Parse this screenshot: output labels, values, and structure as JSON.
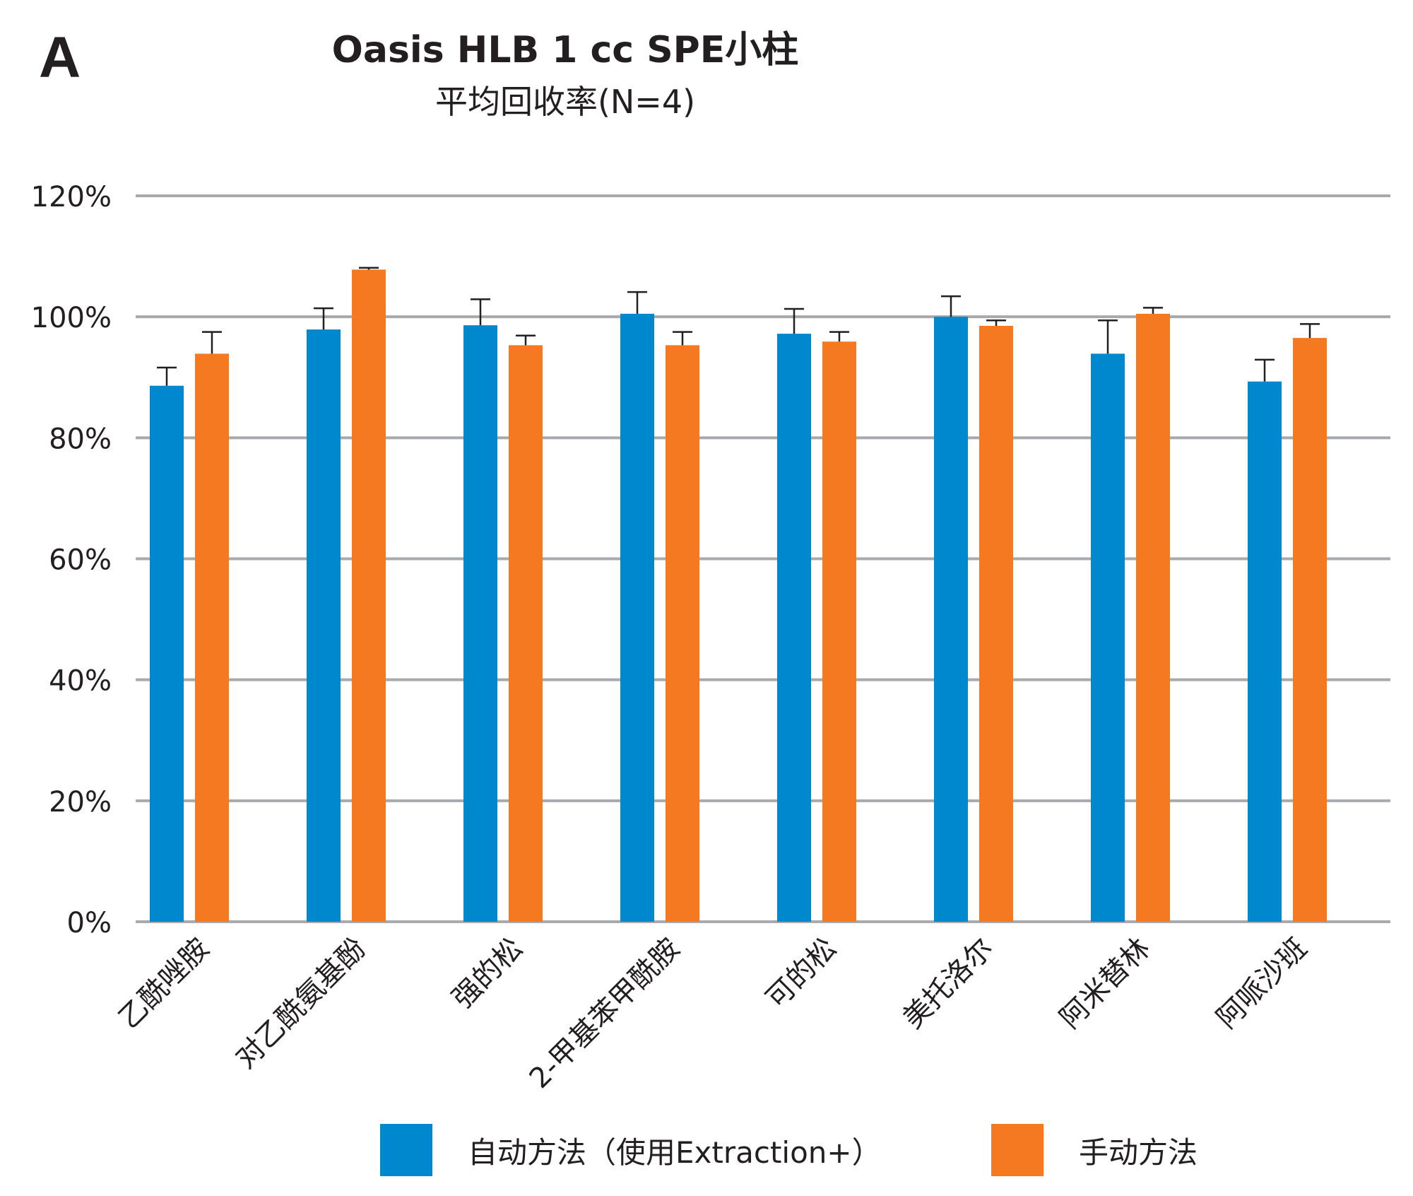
{
  "panel_label": "A",
  "chart_data": {
    "type": "bar",
    "title": "Oasis HLB 1 cc SPE小柱",
    "subtitle": "平均回收率(N=4)",
    "xlabel": "",
    "ylabel": "",
    "ylim": [
      0,
      120
    ],
    "yticks": [
      0,
      20,
      40,
      60,
      80,
      100,
      120
    ],
    "ytick_labels": [
      "0%",
      "20%",
      "40%",
      "60%",
      "80%",
      "100%",
      "120%"
    ],
    "grid": true,
    "legend_position": "bottom",
    "categories": [
      "乙酰唑胺",
      "对乙酰氨基酚",
      "强的松",
      "2-甲基苯甲酰胺",
      "可的松",
      "美托洛尔",
      "阿米替林",
      "阿哌沙班"
    ],
    "series": [
      {
        "name": "自动方法（使用Extraction+）",
        "color": "#0088cf",
        "values": [
          88.6,
          97.9,
          98.6,
          100.5,
          97.2,
          100.0,
          93.9,
          89.3
        ],
        "error": [
          3.0,
          3.5,
          4.3,
          3.6,
          4.1,
          3.4,
          5.5,
          3.6
        ]
      },
      {
        "name": "手动方法",
        "color": "#f47920",
        "values": [
          93.9,
          107.8,
          95.3,
          95.3,
          95.9,
          98.5,
          100.5,
          96.5
        ],
        "error": [
          3.6,
          0.3,
          1.6,
          2.2,
          1.6,
          0.9,
          1.0,
          2.3
        ]
      }
    ]
  }
}
